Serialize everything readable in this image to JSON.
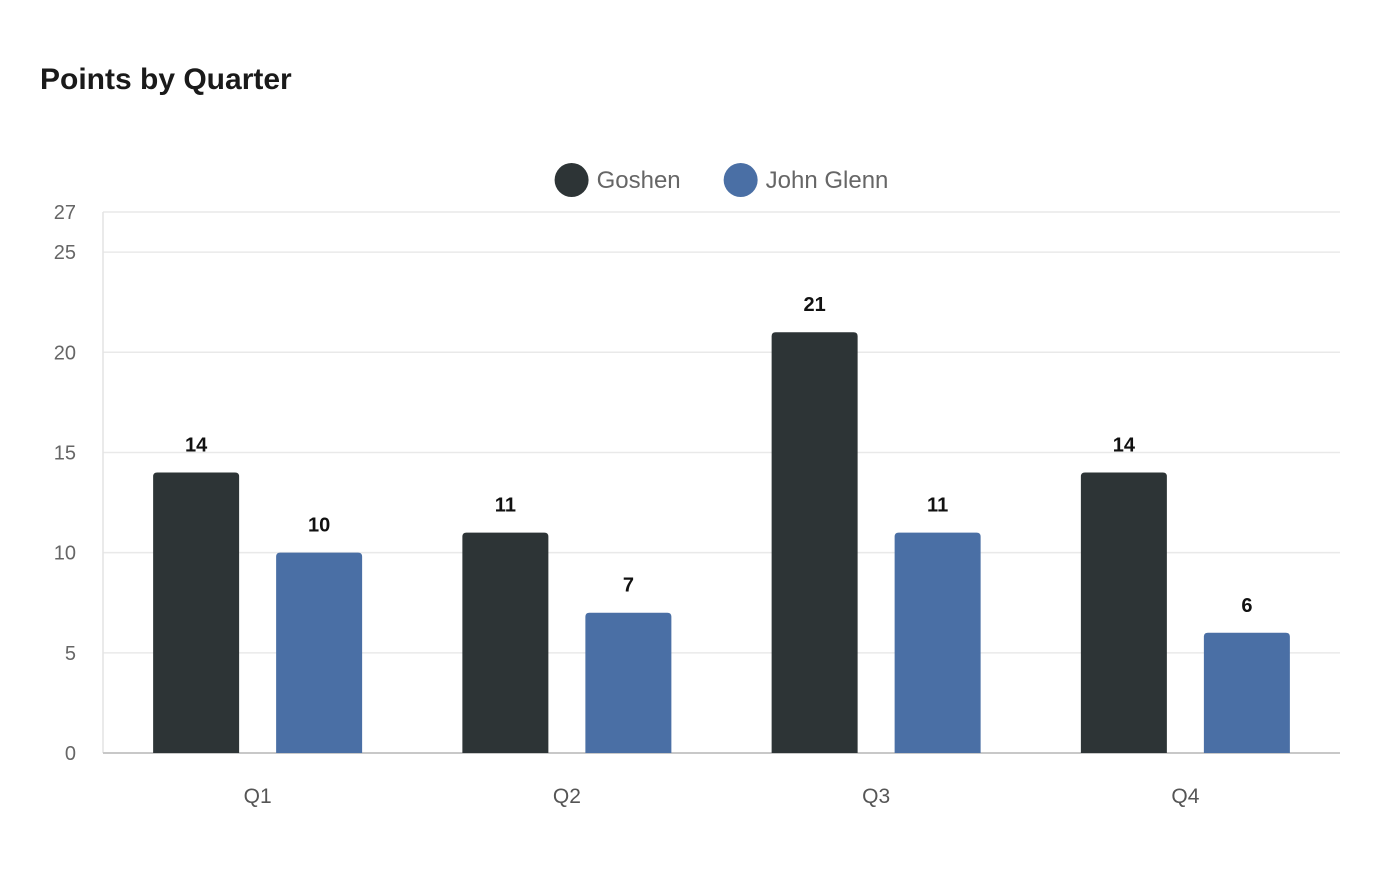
{
  "chart_data": {
    "type": "bar",
    "title": "Points by Quarter",
    "categories": [
      "Q1",
      "Q2",
      "Q3",
      "Q4"
    ],
    "series": [
      {
        "name": "Goshen",
        "color": "#2d3436",
        "values": [
          14,
          11,
          21,
          14
        ]
      },
      {
        "name": "John Glenn",
        "color": "#4a6fa5",
        "values": [
          10,
          7,
          11,
          6
        ]
      }
    ],
    "xlabel": "",
    "ylabel": "",
    "ylim": [
      0,
      27
    ],
    "yticks": [
      0,
      5,
      10,
      15,
      20,
      25,
      27
    ],
    "grid": true,
    "legend": "top-center",
    "data_labels": true
  }
}
